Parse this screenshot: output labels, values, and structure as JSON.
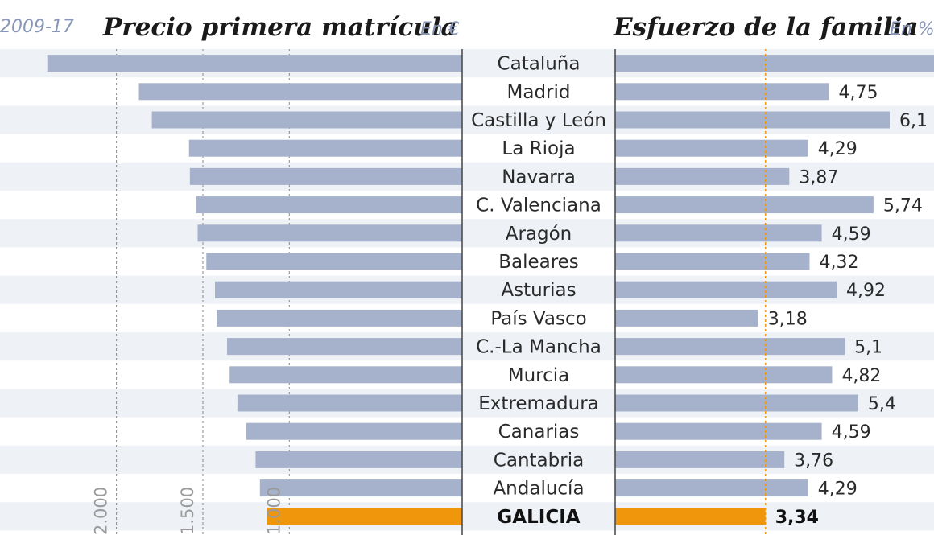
{
  "header": {
    "period": "2009-17",
    "left_title": "Precio primera matrícula",
    "left_unit": "En €",
    "right_title": "Esfuerzo de la familia",
    "right_unit": "En %"
  },
  "colors": {
    "bar": "#a6b2cb",
    "highlight": "#f0960c",
    "band": "#eef1f6",
    "axis": "#444444",
    "guide": "#f0960c"
  },
  "chart_data": [
    {
      "type": "bar",
      "title": "Precio primera matrícula",
      "unit": "En €",
      "orientation": "horizontal",
      "direction": "right-to-left",
      "categories": [
        "Cataluña",
        "Madrid",
        "Castilla y León",
        "La Rioja",
        "Navarra",
        "C. Valenciana",
        "Aragón",
        "Baleares",
        "Asturias",
        "País Vasco",
        "C.-La Mancha",
        "Murcia",
        "Extremadura",
        "Canarias",
        "Cantabria",
        "Andalucía",
        "GALICIA"
      ],
      "values": [
        2400,
        1870,
        1795,
        1580,
        1575,
        1540,
        1530,
        1480,
        1430,
        1420,
        1360,
        1345,
        1300,
        1250,
        1195,
        1170,
        1130
      ],
      "highlight": "GALICIA",
      "tick_labels": [
        "2.000",
        "1.500",
        "1.000"
      ],
      "tick_values": [
        2000,
        1500,
        1000
      ],
      "xlim": [
        0,
        2450
      ]
    },
    {
      "type": "bar",
      "title": "Esfuerzo de la familia",
      "unit": "En %",
      "orientation": "horizontal",
      "direction": "left-to-right",
      "categories": [
        "Cataluña",
        "Madrid",
        "Castilla y León",
        "La Rioja",
        "Navarra",
        "C. Valenciana",
        "Aragón",
        "Baleares",
        "Asturias",
        "País Vasco",
        "C.-La Mancha",
        "Murcia",
        "Extremadura",
        "Canarias",
        "Cantabria",
        "Andalucía",
        "GALICIA"
      ],
      "values": [
        7.1,
        4.75,
        6.1,
        4.29,
        3.87,
        5.74,
        4.59,
        4.32,
        4.92,
        3.18,
        5.1,
        4.82,
        5.4,
        4.59,
        3.76,
        4.29,
        3.34
      ],
      "value_labels": [
        "",
        "4,75",
        "6,1",
        "4,29",
        "3,87",
        "5,74",
        "4,59",
        "4,32",
        "4,92",
        "3,18",
        "5,1",
        "4,82",
        "5,4",
        "4,59",
        "3,76",
        "4,29",
        "3,34"
      ],
      "highlight": "GALICIA",
      "reference_line": 3.34
    }
  ]
}
